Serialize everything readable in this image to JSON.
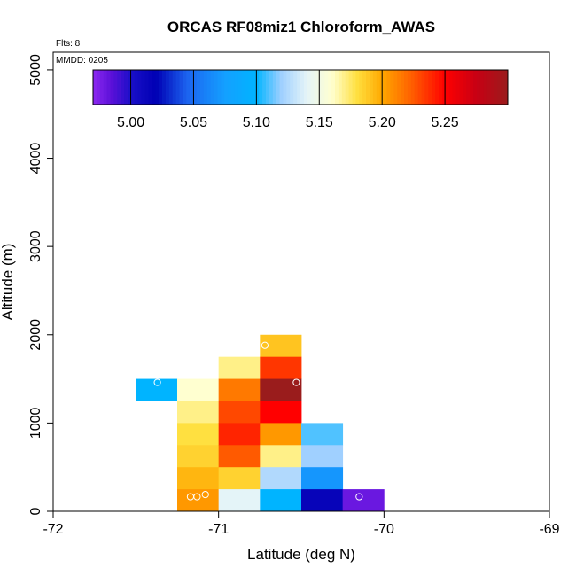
{
  "chart_data": {
    "type": "heatmap",
    "title": "ORCAS RF08miz1 Chloroform_AWAS",
    "flights_label": "Flts: 8",
    "date_label": "MMDD: 0205",
    "xlabel": "Latitude (deg N)",
    "ylabel": "Altitude (m)",
    "xlim": [
      -72,
      -69
    ],
    "ylim": [
      0,
      5200
    ],
    "x_ticks": [
      -72,
      -71,
      -70,
      -69
    ],
    "y_ticks": [
      0,
      1000,
      2000,
      3000,
      4000,
      5000
    ],
    "cell_width": 0.25,
    "cell_height": 250,
    "colorbar": {
      "min": 4.97,
      "max": 5.3,
      "ticks": [
        5.0,
        5.05,
        5.1,
        5.15,
        5.2,
        5.25
      ],
      "tick_labels": [
        "5.00",
        "5.05",
        "5.10",
        "5.15",
        "5.20",
        "5.25"
      ],
      "stops": [
        {
          "v": 4.97,
          "c": "#8b28f0"
        },
        {
          "v": 4.985,
          "c": "#5a10d8"
        },
        {
          "v": 5.0,
          "c": "#1a0fc8"
        },
        {
          "v": 5.02,
          "c": "#0000b4"
        },
        {
          "v": 5.045,
          "c": "#1c64f0"
        },
        {
          "v": 5.075,
          "c": "#14a0ff"
        },
        {
          "v": 5.1,
          "c": "#00b4ff"
        },
        {
          "v": 5.12,
          "c": "#a0d0ff"
        },
        {
          "v": 5.14,
          "c": "#e4f4f8"
        },
        {
          "v": 5.16,
          "c": "#ffffd0"
        },
        {
          "v": 5.18,
          "c": "#ffe040"
        },
        {
          "v": 5.2,
          "c": "#ffa800"
        },
        {
          "v": 5.225,
          "c": "#ff5a00"
        },
        {
          "v": 5.25,
          "c": "#ff0000"
        },
        {
          "v": 5.275,
          "c": "#c80014"
        },
        {
          "v": 5.3,
          "c": "#9a1c1c"
        }
      ]
    },
    "cells": [
      {
        "lat": -71.375,
        "alt": 1375,
        "value": 5.1
      },
      {
        "lat": -71.125,
        "alt": 1375,
        "value": 5.16
      },
      {
        "lat": -71.125,
        "alt": 1125,
        "value": 5.17
      },
      {
        "lat": -71.125,
        "alt": 875,
        "value": 5.18
      },
      {
        "lat": -71.125,
        "alt": 625,
        "value": 5.185
      },
      {
        "lat": -71.125,
        "alt": 375,
        "value": 5.195
      },
      {
        "lat": -71.125,
        "alt": 125,
        "value": 5.205
      },
      {
        "lat": -70.875,
        "alt": 1625,
        "value": 5.17
      },
      {
        "lat": -70.875,
        "alt": 1375,
        "value": 5.215
      },
      {
        "lat": -70.875,
        "alt": 1125,
        "value": 5.23
      },
      {
        "lat": -70.875,
        "alt": 875,
        "value": 5.24
      },
      {
        "lat": -70.875,
        "alt": 625,
        "value": 5.225
      },
      {
        "lat": -70.875,
        "alt": 375,
        "value": 5.185
      },
      {
        "lat": -70.875,
        "alt": 125,
        "value": 5.14
      },
      {
        "lat": -70.625,
        "alt": 1875,
        "value": 5.19
      },
      {
        "lat": -70.625,
        "alt": 1625,
        "value": 5.235
      },
      {
        "lat": -70.625,
        "alt": 1375,
        "value": 5.3
      },
      {
        "lat": -70.625,
        "alt": 1125,
        "value": 5.25
      },
      {
        "lat": -70.625,
        "alt": 875,
        "value": 5.205
      },
      {
        "lat": -70.625,
        "alt": 625,
        "value": 5.17
      },
      {
        "lat": -70.625,
        "alt": 375,
        "value": 5.125
      },
      {
        "lat": -70.625,
        "alt": 125,
        "value": 5.1
      },
      {
        "lat": -70.375,
        "alt": 875,
        "value": 5.11
      },
      {
        "lat": -70.375,
        "alt": 625,
        "value": 5.12
      },
      {
        "lat": -70.375,
        "alt": 375,
        "value": 5.07
      },
      {
        "lat": -70.375,
        "alt": 125,
        "value": 5.015
      },
      {
        "lat": -70.125,
        "alt": 125,
        "value": 4.98
      }
    ],
    "points": [
      {
        "lat": -71.37,
        "alt": 1460
      },
      {
        "lat": -70.72,
        "alt": 1880
      },
      {
        "lat": -70.53,
        "alt": 1460
      },
      {
        "lat": -71.17,
        "alt": 165
      },
      {
        "lat": -71.13,
        "alt": 165
      },
      {
        "lat": -71.08,
        "alt": 190
      },
      {
        "lat": -70.15,
        "alt": 165
      }
    ]
  }
}
